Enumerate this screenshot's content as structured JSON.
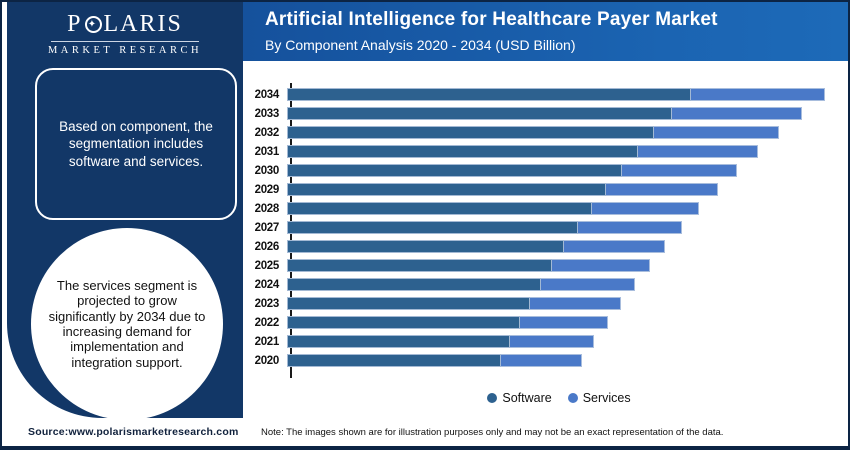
{
  "brand": {
    "name_prefix": "P",
    "name_suffix": "LARIS",
    "o_star": "✦",
    "tagline": "MARKET RESEARCH"
  },
  "header": {
    "title": "Artificial Intelligence for Healthcare Payer Market",
    "subtitle": "By Component Analysis 2020 - 2034 (USD Billion)"
  },
  "sidebar": {
    "box_text": "Based on component, the segmentation includes software and services.",
    "circle_text": "The services segment is projected to grow significantly by 2034 due to increasing demand for implementation and integration support."
  },
  "chart_data": {
    "type": "bar",
    "orientation": "horizontal",
    "stacked": true,
    "title": "Artificial Intelligence for Healthcare Payer Market, By Component Analysis 2020 - 2034 (USD Billion)",
    "categories": [
      "2020",
      "2021",
      "2022",
      "2023",
      "2024",
      "2025",
      "2026",
      "2027",
      "2028",
      "2029",
      "2030",
      "2031",
      "2032",
      "2033",
      "2034"
    ],
    "series": [
      {
        "name": "Software",
        "color": "#2d618f",
        "values": [
          39.8,
          41.4,
          43.3,
          45.2,
          47.2,
          49.3,
          51.5,
          54.1,
          56.7,
          59.3,
          62.3,
          65.2,
          68.2,
          71.6,
          75.1
        ]
      },
      {
        "name": "Services",
        "color": "#4a79c8",
        "values": [
          15.1,
          15.6,
          16.4,
          16.9,
          17.5,
          18.2,
          18.8,
          19.3,
          19.9,
          20.8,
          21.4,
          22.3,
          23.2,
          24.2,
          24.9
        ]
      }
    ],
    "value_units": "relative index (no numeric axis shown in image; values estimated from bar lengths, 2034 total = 100)",
    "category_order_displayed": "2034 at top descending to 2020 at bottom",
    "xlabel": "",
    "ylabel": "",
    "grid": false,
    "legend_position": "bottom"
  },
  "footer": {
    "source": "Source:www.polarismarketresearch.com",
    "note": "Note: The images shown are for illustration purposes only and may not be an exact representation of the data."
  },
  "colors": {
    "sidebar_navy": "#123767",
    "header_blue_left": "#15519c",
    "header_blue_right": "#1d6ab8",
    "software_bar": "#2d618f",
    "services_bar": "#4a79c8",
    "frame_border": "#0c2444"
  }
}
